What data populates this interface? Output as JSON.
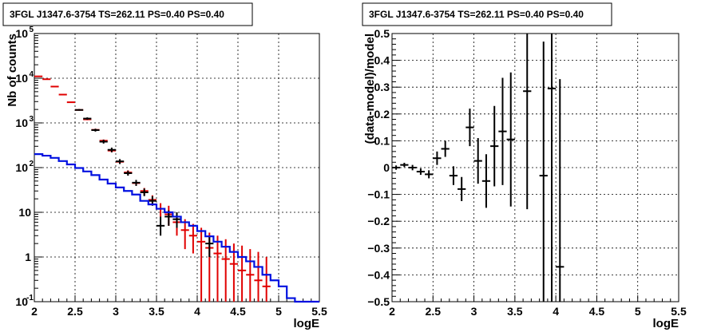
{
  "left_panel": {
    "title": "3FGL J1347.6-3754 TS=262.11 PS=0.40 PS=0.40",
    "xlabel": "logE",
    "ylabel": "Nb of counts"
  },
  "right_panel": {
    "title": "3FGL J1347.6-3754 TS=262.11 PS=0.40 PS=0.40",
    "xlabel": "logE",
    "ylabel": "(data-model)/model"
  },
  "chart_data": [
    {
      "type": "line",
      "title": "3FGL J1347.6-3754 TS=262.11 PS=0.40 PS=0.40",
      "xlabel": "logE",
      "ylabel": "Nb of counts",
      "xlim": [
        2,
        5.5
      ],
      "ylim": [
        0.1,
        100000
      ],
      "yscale": "log",
      "grid": true,
      "x_ticks": [
        "2",
        "2.5",
        "3",
        "3.5",
        "4",
        "4.5",
        "5",
        "5.5"
      ],
      "y_ticks": [
        {
          "value": 0.1,
          "label": "10",
          "exp": "-1"
        },
        {
          "value": 1,
          "label": "1",
          "exp": ""
        },
        {
          "value": 10,
          "label": "10",
          "exp": ""
        },
        {
          "value": 100,
          "label": "10",
          "exp": "2"
        },
        {
          "value": 1000,
          "label": "10",
          "exp": "3"
        },
        {
          "value": 10000,
          "label": "10",
          "exp": "4"
        },
        {
          "value": 100000,
          "label": "10",
          "exp": "5"
        }
      ],
      "bin_width": 0.1,
      "series": [
        {
          "kind": "model_total",
          "color": "#e00000",
          "points": [
            {
              "x": 2.05,
              "y": 11000,
              "lo": 11000,
              "hi": 11000
            },
            {
              "x": 2.15,
              "y": 9500,
              "lo": 9500,
              "hi": 9500
            },
            {
              "x": 2.25,
              "y": 6500,
              "lo": 6500,
              "hi": 6500
            },
            {
              "x": 2.35,
              "y": 4300,
              "lo": 4300,
              "hi": 4300
            },
            {
              "x": 2.45,
              "y": 2900,
              "lo": 2900,
              "hi": 2900
            },
            {
              "x": 2.55,
              "y": 1950,
              "lo": 1900,
              "hi": 2050
            },
            {
              "x": 2.65,
              "y": 1200,
              "lo": 1150,
              "hi": 1260
            },
            {
              "x": 2.75,
              "y": 700,
              "lo": 670,
              "hi": 740
            },
            {
              "x": 2.85,
              "y": 400,
              "lo": 375,
              "hi": 425
            },
            {
              "x": 2.95,
              "y": 240,
              "lo": 220,
              "hi": 260
            },
            {
              "x": 3.05,
              "y": 135,
              "lo": 122,
              "hi": 148
            },
            {
              "x": 3.15,
              "y": 78,
              "lo": 69,
              "hi": 87
            },
            {
              "x": 3.25,
              "y": 45,
              "lo": 39,
              "hi": 52
            },
            {
              "x": 3.35,
              "y": 30,
              "lo": 24,
              "hi": 35
            },
            {
              "x": 3.45,
              "y": 19,
              "lo": 15,
              "hi": 24
            },
            {
              "x": 3.55,
              "y": 12,
              "lo": 8,
              "hi": 16
            },
            {
              "x": 3.65,
              "y": 9,
              "lo": 5,
              "hi": 14
            },
            {
              "x": 3.75,
              "y": 6,
              "lo": 3,
              "hi": 10
            },
            {
              "x": 3.85,
              "y": 4,
              "lo": 1.5,
              "hi": 7
            },
            {
              "x": 3.95,
              "y": 3,
              "lo": 1.2,
              "hi": 5.5
            },
            {
              "x": 4.05,
              "y": 2.2,
              "lo": 0.1,
              "hi": 4.5
            },
            {
              "x": 4.15,
              "y": 1.6,
              "lo": 0.1,
              "hi": 3.5
            },
            {
              "x": 4.25,
              "y": 1.2,
              "lo": 0.1,
              "hi": 3.0
            },
            {
              "x": 4.35,
              "y": 0.9,
              "lo": 0.1,
              "hi": 2.5
            },
            {
              "x": 4.45,
              "y": 0.7,
              "lo": 0.1,
              "hi": 2.0
            },
            {
              "x": 4.55,
              "y": 0.5,
              "lo": 0.1,
              "hi": 1.8
            },
            {
              "x": 4.65,
              "y": 0.4,
              "lo": 0.1,
              "hi": 1.5
            },
            {
              "x": 4.75,
              "y": 0.3,
              "lo": 0.1,
              "hi": 1.3
            },
            {
              "x": 4.85,
              "y": 0.22,
              "lo": 0.1,
              "hi": 1.0
            }
          ]
        },
        {
          "kind": "data",
          "color": "#000000",
          "points": [
            {
              "x": 2.55,
              "y": 1950,
              "lo": 1880,
              "hi": 2030
            },
            {
              "x": 2.65,
              "y": 1250,
              "lo": 1180,
              "hi": 1330
            },
            {
              "x": 2.75,
              "y": 690,
              "lo": 640,
              "hi": 740
            },
            {
              "x": 2.85,
              "y": 380,
              "lo": 345,
              "hi": 420
            },
            {
              "x": 2.95,
              "y": 250,
              "lo": 220,
              "hi": 280
            },
            {
              "x": 3.05,
              "y": 138,
              "lo": 120,
              "hi": 155
            },
            {
              "x": 3.15,
              "y": 75,
              "lo": 66,
              "hi": 85
            },
            {
              "x": 3.25,
              "y": 46,
              "lo": 39,
              "hi": 53
            },
            {
              "x": 3.35,
              "y": 28,
              "lo": 23,
              "hi": 34
            },
            {
              "x": 3.45,
              "y": 18,
              "lo": 14,
              "hi": 23
            },
            {
              "x": 3.55,
              "y": 5,
              "lo": 3,
              "hi": 8
            },
            {
              "x": 3.65,
              "y": 8,
              "lo": 5,
              "hi": 11
            },
            {
              "x": 3.75,
              "y": 7,
              "lo": 4.5,
              "hi": 10
            },
            {
              "x": 4.15,
              "y": 2,
              "lo": 1,
              "hi": 3
            }
          ]
        },
        {
          "kind": "model_source",
          "color": "#0010e0",
          "steps": [
            200,
            185,
            165,
            140,
            118,
            98,
            82,
            68,
            54,
            44,
            36,
            30,
            25,
            18,
            15,
            12,
            10,
            8,
            6,
            5,
            3.8,
            2.9,
            2.2,
            1.7,
            1.3,
            1.0,
            0.8,
            0.6,
            0.4,
            0.3,
            0.22,
            0.12,
            0.1,
            0.1,
            0.1
          ]
        }
      ]
    },
    {
      "type": "scatter",
      "title": "3FGL J1347.6-3754 TS=262.11 PS=0.40 PS=0.40",
      "xlabel": "logE",
      "ylabel": "(data-model)/model",
      "xlim": [
        2,
        5.5
      ],
      "ylim": [
        -0.5,
        0.5
      ],
      "grid": true,
      "x_ticks": [
        "2",
        "2.5",
        "3",
        "3.5",
        "4",
        "4.5",
        "5",
        "5.5"
      ],
      "y_ticks": [
        {
          "value": -0.5,
          "label": "−0.5"
        },
        {
          "value": -0.4,
          "label": "−0.4"
        },
        {
          "value": -0.3,
          "label": "−0.3"
        },
        {
          "value": -0.2,
          "label": "−0.2"
        },
        {
          "value": -0.1,
          "label": "−0.1"
        },
        {
          "value": 0,
          "label": "0"
        },
        {
          "value": 0.1,
          "label": "0.1"
        },
        {
          "value": 0.2,
          "label": "0.2"
        },
        {
          "value": 0.3,
          "label": "0.3"
        },
        {
          "value": 0.4,
          "label": "0.4"
        },
        {
          "value": 0.5,
          "label": "0.5"
        }
      ],
      "bin_width": 0.1,
      "points": [
        {
          "x": 2.05,
          "y": 0.0,
          "err": 0.008
        },
        {
          "x": 2.15,
          "y": 0.01,
          "err": 0.008
        },
        {
          "x": 2.25,
          "y": 0.0,
          "err": 0.01
        },
        {
          "x": 2.35,
          "y": -0.015,
          "err": 0.012
        },
        {
          "x": 2.45,
          "y": -0.025,
          "err": 0.015
        },
        {
          "x": 2.55,
          "y": 0.035,
          "err": 0.025
        },
        {
          "x": 2.65,
          "y": 0.07,
          "err": 0.03
        },
        {
          "x": 2.75,
          "y": -0.03,
          "err": 0.035
        },
        {
          "x": 2.85,
          "y": -0.08,
          "err": 0.045
        },
        {
          "x": 2.95,
          "y": 0.15,
          "err": 0.07
        },
        {
          "x": 3.05,
          "y": 0.025,
          "err": 0.085
        },
        {
          "x": 3.15,
          "y": -0.05,
          "err": 0.1
        },
        {
          "x": 3.25,
          "y": 0.08,
          "err": 0.15
        },
        {
          "x": 3.35,
          "y": 0.135,
          "err": 0.2
        },
        {
          "x": 3.45,
          "y": 0.105,
          "err": 0.25
        },
        {
          "x": 3.65,
          "y": 0.285,
          "err": 0.44
        },
        {
          "x": 3.85,
          "y": -0.03,
          "err": 0.5
        },
        {
          "x": 3.95,
          "y": 0.295,
          "err": 0.8
        },
        {
          "x": 4.05,
          "y": -0.37,
          "err": 0.7
        }
      ]
    }
  ]
}
